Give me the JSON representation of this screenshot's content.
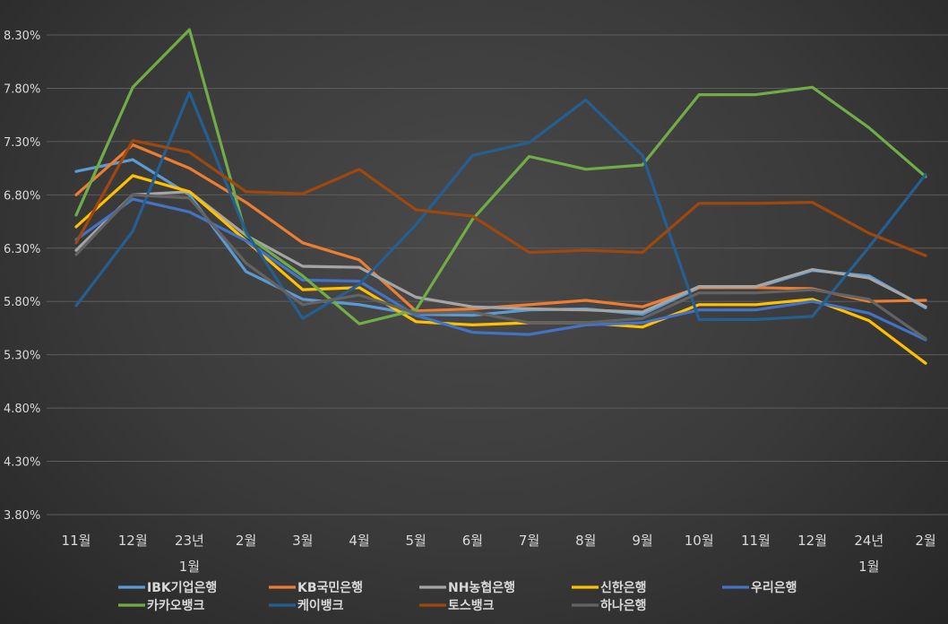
{
  "chart_data": {
    "type": "line",
    "title": "",
    "xlabel": "",
    "ylabel": "",
    "ylim": [
      3.8,
      8.3
    ],
    "yticks": [
      "8.30%",
      "7.80%",
      "7.30%",
      "6.80%",
      "6.30%",
      "5.80%",
      "5.30%",
      "4.80%",
      "4.30%",
      "3.80%"
    ],
    "grid": true,
    "legend_position": "bottom",
    "categories": [
      "11월",
      "12월",
      "23년 1월",
      "2월",
      "3월",
      "4월",
      "5월",
      "6월",
      "7월",
      "8월",
      "9월",
      "10월",
      "11월",
      "12월",
      "24년 1월",
      "2월"
    ],
    "category_labels": [
      [
        "11월"
      ],
      [
        "12월"
      ],
      [
        "23년",
        "1월"
      ],
      [
        "2월"
      ],
      [
        "3월"
      ],
      [
        "4월"
      ],
      [
        "5월"
      ],
      [
        "6월"
      ],
      [
        "7월"
      ],
      [
        "8월"
      ],
      [
        "9월"
      ],
      [
        "10월"
      ],
      [
        "11월"
      ],
      [
        "12월"
      ],
      [
        "24년",
        "1월"
      ],
      [
        "2월"
      ]
    ],
    "series": [
      {
        "name": "IBK기업은행",
        "color": "#5b9bd5",
        "values": [
          7.02,
          7.13,
          6.8,
          6.08,
          5.82,
          5.77,
          5.68,
          5.67,
          5.72,
          5.73,
          5.68,
          5.93,
          5.93,
          6.09,
          6.04,
          5.74
        ]
      },
      {
        "name": "KB국민은행",
        "color": "#ed7d31",
        "values": [
          6.8,
          7.27,
          7.05,
          6.73,
          6.35,
          6.19,
          5.71,
          5.73,
          5.77,
          5.81,
          5.75,
          5.93,
          5.93,
          5.92,
          5.8,
          5.81
        ]
      },
      {
        "name": "NH농협은행",
        "color": "#a5a5a5",
        "values": [
          6.28,
          6.8,
          6.83,
          6.42,
          6.13,
          6.12,
          5.84,
          5.75,
          5.73,
          5.72,
          5.7,
          5.94,
          5.94,
          6.1,
          6.02,
          5.75
        ]
      },
      {
        "name": "신한은행",
        "color": "#ffc000",
        "values": [
          6.5,
          6.98,
          6.83,
          6.37,
          5.91,
          5.93,
          5.61,
          5.58,
          5.6,
          5.6,
          5.56,
          5.77,
          5.77,
          5.82,
          5.62,
          5.22
        ]
      },
      {
        "name": "우리은행",
        "color": "#4472c4",
        "values": [
          6.38,
          6.76,
          6.64,
          6.37,
          6.0,
          5.99,
          5.67,
          5.51,
          5.49,
          5.58,
          5.6,
          5.72,
          5.72,
          5.8,
          5.69,
          5.44
        ]
      },
      {
        "name": "카카오뱅크",
        "color": "#70ad47",
        "values": [
          6.61,
          7.81,
          8.35,
          6.42,
          6.04,
          5.59,
          5.72,
          6.57,
          7.16,
          7.04,
          7.08,
          7.74,
          7.74,
          7.81,
          7.43,
          6.97
        ]
      },
      {
        "name": "케이뱅크",
        "color": "#255e91",
        "values": [
          5.76,
          6.46,
          7.76,
          6.45,
          5.64,
          5.96,
          6.52,
          7.17,
          7.29,
          7.69,
          7.17,
          5.63,
          5.63,
          5.66,
          6.31,
          6.99
        ]
      },
      {
        "name": "토스뱅크",
        "color": "#9e480e",
        "values": [
          6.35,
          7.31,
          7.2,
          6.83,
          6.81,
          7.04,
          6.66,
          6.6,
          6.26,
          6.28,
          6.26,
          6.72,
          6.72,
          6.73,
          6.44,
          6.23
        ]
      },
      {
        "name": "하나은행",
        "color": "#636363",
        "values": [
          6.24,
          6.8,
          6.77,
          6.16,
          5.77,
          5.86,
          5.69,
          5.7,
          5.6,
          5.6,
          5.64,
          5.88,
          5.88,
          5.91,
          5.82,
          5.45
        ]
      }
    ]
  }
}
